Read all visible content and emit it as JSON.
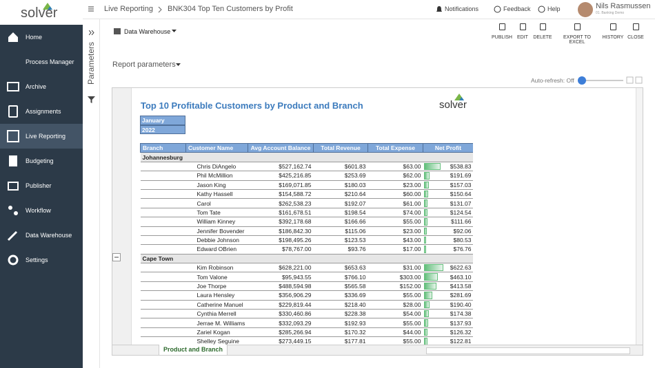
{
  "sidebar": {
    "logo": "solver",
    "nav": [
      {
        "label": "Home",
        "icon": "home"
      },
      {
        "label": "Process Manager",
        "icon": ""
      },
      {
        "label": "Archive",
        "icon": "archive"
      },
      {
        "label": "Assignments",
        "icon": "clip"
      },
      {
        "label": "Live Reporting",
        "icon": "screen",
        "active": true
      },
      {
        "label": "Budgeting",
        "icon": "calc"
      },
      {
        "label": "Publisher",
        "icon": "pub"
      },
      {
        "label": "Workflow",
        "icon": "flow"
      },
      {
        "label": "Data Warehouse",
        "icon": "tools"
      },
      {
        "label": "Settings",
        "icon": "gear"
      }
    ]
  },
  "header": {
    "breadcrumb": [
      "Live Reporting",
      "BNK304 Top Ten Customers by Profit"
    ],
    "notifications": "Notifications",
    "feedback": "Feedback",
    "help": "Help",
    "user": "Nils Rasmussen",
    "user_sub": "01. Banking Demo"
  },
  "toolbar": {
    "panel": "Parameters",
    "source": "Data Warehouse",
    "buttons": [
      "PUBLISH",
      "EDIT",
      "DELETE",
      "EXPORT TO EXCEL",
      "HISTORY",
      "CLOSE"
    ],
    "report_parameters": "Report parameters",
    "auto_refresh": "Auto-refresh: Off"
  },
  "report": {
    "title": "Top 10 Profitable Customers by Product and Branch",
    "logo": "solver",
    "period": [
      "January",
      "2022"
    ],
    "columns": [
      "Branch",
      "Customer Name",
      "Avg Account Balance",
      "Total Revenue",
      "Total Expense",
      "Net Profit"
    ],
    "groups": [
      {
        "name": "Johannesburg",
        "rows": [
          [
            "Chris DiAngelo",
            "$527,162.74",
            "$601.83",
            "$63.00",
            "$538.83"
          ],
          [
            "Phil McMillion",
            "$425,216.85",
            "$253.69",
            "$62.00",
            "$191.69"
          ],
          [
            "Jason King",
            "$169,071.85",
            "$180.03",
            "$23.00",
            "$157.03"
          ],
          [
            "Kathy Hassell",
            "$154,588.72",
            "$210.64",
            "$60.00",
            "$150.64"
          ],
          [
            "Carol",
            "$262,538.23",
            "$192.07",
            "$61.00",
            "$131.07"
          ],
          [
            "Tom Tate",
            "$161,678.51",
            "$198.54",
            "$74.00",
            "$124.54"
          ],
          [
            "William Kinney",
            "$392,178.68",
            "$166.66",
            "$55.00",
            "$111.66"
          ],
          [
            "Jennifer Bovender",
            "$186,842.30",
            "$115.06",
            "$23.00",
            "$92.06"
          ],
          [
            "Debbie Johnson",
            "$198,495.26",
            "$123.53",
            "$43.00",
            "$80.53"
          ],
          [
            "Edward OBrien",
            "$78,767.00",
            "$93.76",
            "$17.00",
            "$76.76"
          ]
        ]
      },
      {
        "name": "Cape Town",
        "rows": [
          [
            "Kim Robinson",
            "$628,221.00",
            "$653.63",
            "$31.00",
            "$622.63"
          ],
          [
            "Tom Valone",
            "$95,943.55",
            "$766.10",
            "$303.00",
            "$463.10"
          ],
          [
            "Joe Thorpe",
            "$488,594.98",
            "$565.58",
            "$152.00",
            "$413.58"
          ],
          [
            "Laura Hensley",
            "$356,906.29",
            "$336.69",
            "$55.00",
            "$281.69"
          ],
          [
            "Catherine Manuel",
            "$229,819.44",
            "$218.40",
            "$28.00",
            "$190.40"
          ],
          [
            "Cynthia Merrell",
            "$330,460.86",
            "$228.38",
            "$54.00",
            "$174.38"
          ],
          [
            "Jerrae M. Williams",
            "$332,093.29",
            "$192.93",
            "$55.00",
            "$137.93"
          ],
          [
            "Zariel Kogan",
            "$285,266.94",
            "$170.32",
            "$44.00",
            "$126.32"
          ],
          [
            "Shelley Seguine",
            "$273,449.15",
            "$177.81",
            "$55.00",
            "$122.81"
          ]
        ]
      }
    ],
    "sheet_tab": "Product and Branch"
  }
}
